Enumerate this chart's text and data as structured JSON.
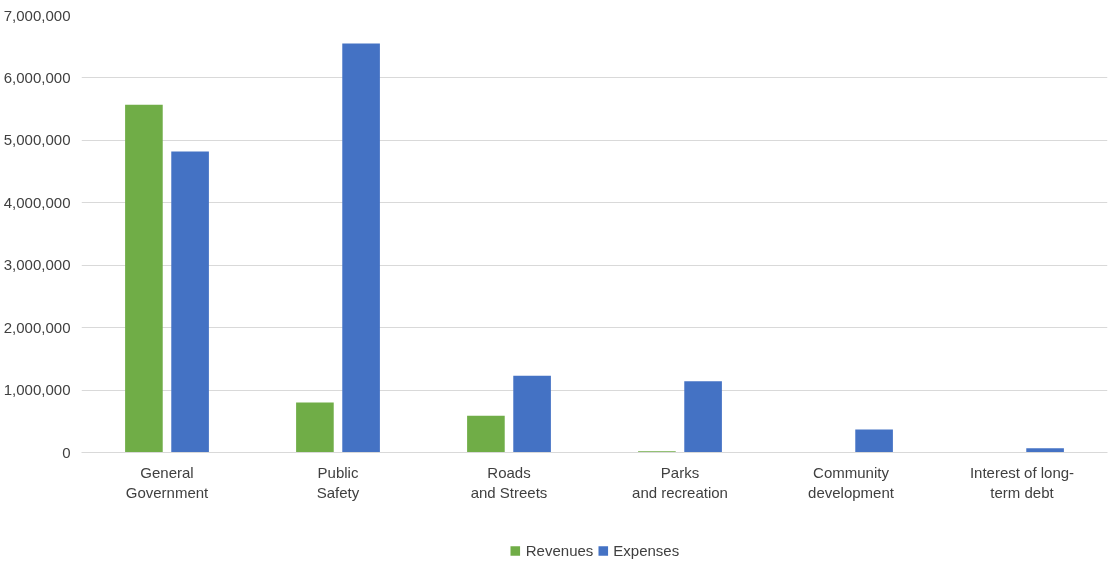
{
  "chart_data": {
    "type": "bar",
    "categories": [
      "General Government",
      "Public Safety",
      "Roads and Streets",
      "Parks and recreation",
      "Community development",
      "Interest of long-term debt"
    ],
    "series": [
      {
        "name": "Revenues",
        "color": "#70ad47",
        "values": [
          5570000,
          800000,
          590000,
          20000,
          0,
          0
        ]
      },
      {
        "name": "Expenses",
        "color": "#4472c4",
        "values": [
          4820000,
          6550000,
          1230000,
          1140000,
          370000,
          70000
        ]
      }
    ],
    "ylim": [
      0,
      7000000
    ],
    "yticks": [
      {
        "value": 0,
        "label": "0"
      },
      {
        "value": 1000000,
        "label": "1,000,000"
      },
      {
        "value": 2000000,
        "label": "2,000,000"
      },
      {
        "value": 3000000,
        "label": "3,000,000"
      },
      {
        "value": 4000000,
        "label": "4,000,000"
      },
      {
        "value": 5000000,
        "label": "5,000,000"
      },
      {
        "value": 6000000,
        "label": "6,000,000"
      },
      {
        "value": 7000000,
        "label": "7,000,000"
      }
    ],
    "grid": "y",
    "legend": "bottom"
  }
}
